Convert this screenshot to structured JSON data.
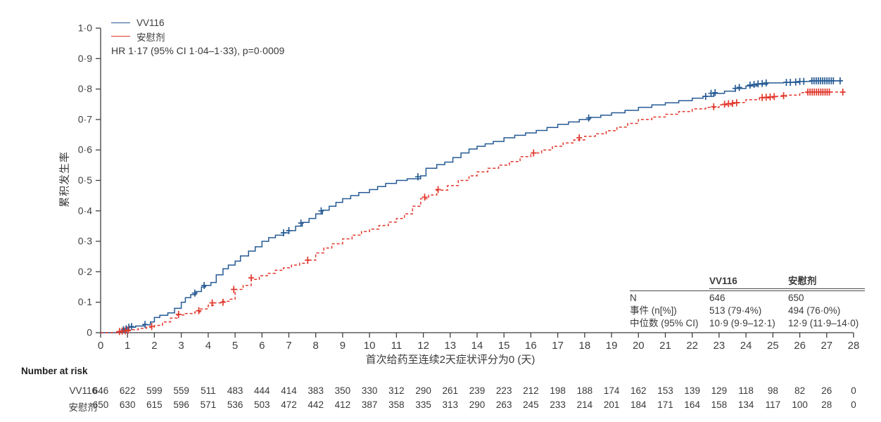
{
  "chart_data": {
    "type": "line",
    "subtype": "kaplan_meier_cumulative_incidence_step",
    "title": "",
    "xlabel": "首次给药至连续2天症状评分为0 (天)",
    "ylabel": "累积发生率",
    "xlim": [
      0,
      28
    ],
    "ylim": [
      0,
      1.0
    ],
    "grid": false,
    "legend_position": "top-left",
    "annotation": "HR 1·17 (95% CI 1·04–1·33), p=0·0009",
    "x_ticks": [
      0,
      1,
      2,
      3,
      4,
      5,
      6,
      7,
      8,
      9,
      10,
      11,
      12,
      13,
      14,
      15,
      16,
      17,
      18,
      19,
      20,
      21,
      22,
      23,
      24,
      25,
      26,
      27,
      28
    ],
    "y_ticks": [
      {
        "v": 0,
        "label": "0"
      },
      {
        "v": 0.1,
        "label": "0·1"
      },
      {
        "v": 0.2,
        "label": "0·2"
      },
      {
        "v": 0.3,
        "label": "0·3"
      },
      {
        "v": 0.4,
        "label": "0·4"
      },
      {
        "v": 0.5,
        "label": "0·5"
      },
      {
        "v": 0.6,
        "label": "0·6"
      },
      {
        "v": 0.7,
        "label": "0·7"
      },
      {
        "v": 0.8,
        "label": "0·8"
      },
      {
        "v": 0.9,
        "label": "0·9"
      },
      {
        "v": 1.0,
        "label": "1·0"
      }
    ],
    "series": [
      {
        "name": "VV116",
        "color": "#265a94",
        "style": "solid",
        "points": [
          [
            0,
            0
          ],
          [
            0.6,
            0.003
          ],
          [
            0.8,
            0.008
          ],
          [
            0.95,
            0.013
          ],
          [
            1.05,
            0.018
          ],
          [
            1.3,
            0.022
          ],
          [
            1.6,
            0.026
          ],
          [
            1.85,
            0.035
          ],
          [
            2,
            0.05
          ],
          [
            2.2,
            0.057
          ],
          [
            2.5,
            0.065
          ],
          [
            2.75,
            0.08
          ],
          [
            3,
            0.1
          ],
          [
            3.15,
            0.115
          ],
          [
            3.35,
            0.125
          ],
          [
            3.55,
            0.135
          ],
          [
            3.75,
            0.15
          ],
          [
            3.9,
            0.155
          ],
          [
            4.1,
            0.165
          ],
          [
            4.3,
            0.19
          ],
          [
            4.55,
            0.21
          ],
          [
            4.75,
            0.222
          ],
          [
            5,
            0.235
          ],
          [
            5.2,
            0.252
          ],
          [
            5.5,
            0.268
          ],
          [
            5.75,
            0.282
          ],
          [
            6,
            0.3
          ],
          [
            6.25,
            0.312
          ],
          [
            6.5,
            0.32
          ],
          [
            6.8,
            0.328
          ],
          [
            7,
            0.335
          ],
          [
            7.25,
            0.35
          ],
          [
            7.5,
            0.362
          ],
          [
            7.75,
            0.375
          ],
          [
            8,
            0.39
          ],
          [
            8.25,
            0.402
          ],
          [
            8.5,
            0.415
          ],
          [
            8.75,
            0.428
          ],
          [
            9,
            0.44
          ],
          [
            9.3,
            0.45
          ],
          [
            9.6,
            0.46
          ],
          [
            10,
            0.47
          ],
          [
            10.3,
            0.48
          ],
          [
            10.6,
            0.49
          ],
          [
            11,
            0.5
          ],
          [
            11.4,
            0.505
          ],
          [
            11.9,
            0.515
          ],
          [
            12.1,
            0.54
          ],
          [
            12.5,
            0.552
          ],
          [
            12.8,
            0.56
          ],
          [
            13.1,
            0.575
          ],
          [
            13.4,
            0.59
          ],
          [
            13.7,
            0.603
          ],
          [
            14,
            0.612
          ],
          [
            14.3,
            0.62
          ],
          [
            14.6,
            0.628
          ],
          [
            15,
            0.64
          ],
          [
            15.4,
            0.648
          ],
          [
            15.8,
            0.656
          ],
          [
            16.2,
            0.664
          ],
          [
            16.6,
            0.674
          ],
          [
            17,
            0.684
          ],
          [
            17.4,
            0.692
          ],
          [
            17.8,
            0.7
          ],
          [
            18.2,
            0.707
          ],
          [
            18.6,
            0.714
          ],
          [
            19,
            0.722
          ],
          [
            19.5,
            0.73
          ],
          [
            20,
            0.74
          ],
          [
            20.5,
            0.748
          ],
          [
            21,
            0.755
          ],
          [
            21.5,
            0.762
          ],
          [
            22,
            0.77
          ],
          [
            22.4,
            0.776
          ],
          [
            22.8,
            0.786
          ],
          [
            23.2,
            0.793
          ],
          [
            23.6,
            0.802
          ],
          [
            24,
            0.81
          ],
          [
            24.4,
            0.816
          ],
          [
            24.8,
            0.82
          ],
          [
            25.4,
            0.822
          ],
          [
            26,
            0.825
          ],
          [
            26.4,
            0.827
          ],
          [
            27.6,
            0.827
          ]
        ],
        "censors": [
          [
            0.85,
            0.01
          ],
          [
            0.95,
            0.013
          ],
          [
            1.05,
            0.018
          ],
          [
            1.15,
            0.02
          ],
          [
            1.65,
            0.027
          ],
          [
            3.5,
            0.13
          ],
          [
            3.85,
            0.155
          ],
          [
            6.8,
            0.328
          ],
          [
            7.0,
            0.335
          ],
          [
            7.45,
            0.36
          ],
          [
            8.2,
            0.4
          ],
          [
            11.8,
            0.512
          ],
          [
            18.15,
            0.705
          ],
          [
            22.5,
            0.776
          ],
          [
            22.7,
            0.786
          ],
          [
            22.85,
            0.788
          ],
          [
            23.6,
            0.802
          ],
          [
            23.75,
            0.805
          ],
          [
            24.15,
            0.813
          ],
          [
            24.3,
            0.815
          ],
          [
            24.45,
            0.817
          ],
          [
            24.6,
            0.818
          ],
          [
            24.75,
            0.82
          ],
          [
            25.5,
            0.822
          ],
          [
            25.65,
            0.822
          ],
          [
            25.85,
            0.823
          ],
          [
            26.0,
            0.825
          ],
          [
            26.15,
            0.825
          ],
          [
            26.45,
            0.827
          ],
          [
            26.53,
            0.827
          ],
          [
            26.61,
            0.827
          ],
          [
            26.69,
            0.827
          ],
          [
            26.77,
            0.827
          ],
          [
            26.85,
            0.827
          ],
          [
            26.93,
            0.827
          ],
          [
            27.01,
            0.827
          ],
          [
            27.09,
            0.827
          ],
          [
            27.17,
            0.827
          ],
          [
            27.25,
            0.827
          ],
          [
            27.5,
            0.827
          ]
        ]
      },
      {
        "name": "安慰剂",
        "color": "#e1382d",
        "style": "dashed",
        "points": [
          [
            0,
            0
          ],
          [
            0.65,
            0.003
          ],
          [
            0.9,
            0.006
          ],
          [
            1.1,
            0.01
          ],
          [
            1.4,
            0.014
          ],
          [
            1.7,
            0.018
          ],
          [
            2,
            0.024
          ],
          [
            2.3,
            0.035
          ],
          [
            2.6,
            0.048
          ],
          [
            2.85,
            0.058
          ],
          [
            3.1,
            0.063
          ],
          [
            3.5,
            0.068
          ],
          [
            3.7,
            0.078
          ],
          [
            4,
            0.09
          ],
          [
            4.2,
            0.098
          ],
          [
            4.5,
            0.103
          ],
          [
            4.8,
            0.11
          ],
          [
            5,
            0.142
          ],
          [
            5.3,
            0.155
          ],
          [
            5.6,
            0.175
          ],
          [
            5.9,
            0.187
          ],
          [
            6.2,
            0.195
          ],
          [
            6.5,
            0.205
          ],
          [
            6.8,
            0.213
          ],
          [
            7.1,
            0.222
          ],
          [
            7.4,
            0.228
          ],
          [
            7.7,
            0.238
          ],
          [
            8,
            0.262
          ],
          [
            8.3,
            0.278
          ],
          [
            8.6,
            0.292
          ],
          [
            9,
            0.308
          ],
          [
            9.35,
            0.32
          ],
          [
            9.7,
            0.332
          ],
          [
            10,
            0.34
          ],
          [
            10.35,
            0.352
          ],
          [
            10.7,
            0.363
          ],
          [
            11,
            0.375
          ],
          [
            11.3,
            0.39
          ],
          [
            11.6,
            0.415
          ],
          [
            11.9,
            0.44
          ],
          [
            12.2,
            0.452
          ],
          [
            12.5,
            0.468
          ],
          [
            12.9,
            0.483
          ],
          [
            13.3,
            0.5
          ],
          [
            13.7,
            0.515
          ],
          [
            14,
            0.528
          ],
          [
            14.4,
            0.54
          ],
          [
            14.8,
            0.55
          ],
          [
            15.2,
            0.562
          ],
          [
            15.6,
            0.578
          ],
          [
            16,
            0.59
          ],
          [
            16.4,
            0.6
          ],
          [
            16.8,
            0.612
          ],
          [
            17.2,
            0.623
          ],
          [
            17.6,
            0.633
          ],
          [
            18,
            0.645
          ],
          [
            18.4,
            0.653
          ],
          [
            18.8,
            0.663
          ],
          [
            19.2,
            0.675
          ],
          [
            19.6,
            0.687
          ],
          [
            20,
            0.7
          ],
          [
            20.5,
            0.708
          ],
          [
            21,
            0.717
          ],
          [
            21.5,
            0.726
          ],
          [
            22,
            0.735
          ],
          [
            22.5,
            0.74
          ],
          [
            23,
            0.748
          ],
          [
            23.5,
            0.756
          ],
          [
            24,
            0.765
          ],
          [
            24.5,
            0.771
          ],
          [
            25,
            0.776
          ],
          [
            25.5,
            0.78
          ],
          [
            26,
            0.788
          ],
          [
            26.3,
            0.79
          ],
          [
            27.7,
            0.79
          ]
        ],
        "censors": [
          [
            0.7,
            0.004
          ],
          [
            0.8,
            0.005
          ],
          [
            0.92,
            0.006
          ],
          [
            1.02,
            0.008
          ],
          [
            1.9,
            0.02
          ],
          [
            2.9,
            0.06
          ],
          [
            3.65,
            0.072
          ],
          [
            4.15,
            0.098
          ],
          [
            4.55,
            0.1
          ],
          [
            4.95,
            0.142
          ],
          [
            5.6,
            0.18
          ],
          [
            7.7,
            0.238
          ],
          [
            12.05,
            0.445
          ],
          [
            12.55,
            0.47
          ],
          [
            16.1,
            0.59
          ],
          [
            17.8,
            0.64
          ],
          [
            22.8,
            0.742
          ],
          [
            23.2,
            0.75
          ],
          [
            23.35,
            0.752
          ],
          [
            23.5,
            0.753
          ],
          [
            23.65,
            0.755
          ],
          [
            24.6,
            0.772
          ],
          [
            24.75,
            0.773
          ],
          [
            24.9,
            0.774
          ],
          [
            25.05,
            0.775
          ],
          [
            25.4,
            0.778
          ],
          [
            26.3,
            0.79
          ],
          [
            26.38,
            0.79
          ],
          [
            26.46,
            0.79
          ],
          [
            26.54,
            0.79
          ],
          [
            26.62,
            0.79
          ],
          [
            26.7,
            0.79
          ],
          [
            26.78,
            0.79
          ],
          [
            26.86,
            0.79
          ],
          [
            26.94,
            0.79
          ],
          [
            27.02,
            0.79
          ],
          [
            27.1,
            0.79
          ],
          [
            27.6,
            0.79
          ]
        ]
      }
    ]
  },
  "stats_table": {
    "col_headers": [
      "VV116",
      "安慰剂"
    ],
    "rows": [
      {
        "label": "N",
        "values": [
          "646",
          "650"
        ]
      },
      {
        "label": "事件 (n[%])",
        "values": [
          "513 (79·4%)",
          "494 (76·0%)"
        ]
      },
      {
        "label": "中位数 (95% CI)",
        "values": [
          "10·9 (9·9–12·1)",
          "12·9 (11·9–14·0)"
        ]
      }
    ]
  },
  "number_at_risk": {
    "title": "Number at risk",
    "rows": [
      {
        "label": "VV116",
        "values": [
          646,
          622,
          599,
          559,
          511,
          483,
          444,
          414,
          383,
          350,
          330,
          312,
          290,
          261,
          239,
          223,
          212,
          198,
          188,
          174,
          162,
          153,
          139,
          129,
          118,
          98,
          82,
          26,
          0
        ]
      },
      {
        "label": "安慰剂",
        "values": [
          650,
          630,
          615,
          596,
          571,
          536,
          503,
          472,
          442,
          412,
          387,
          358,
          335,
          313,
          290,
          263,
          245,
          233,
          214,
          201,
          184,
          171,
          164,
          158,
          134,
          117,
          100,
          28,
          0
        ]
      }
    ]
  }
}
